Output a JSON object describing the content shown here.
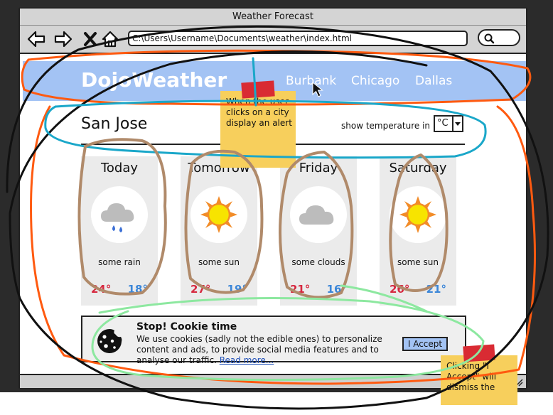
{
  "window": {
    "title": "Weather Forecast"
  },
  "browser": {
    "url": "C:\\Users\\Username\\Documents\\weather\\index.html"
  },
  "brand": {
    "name": "DojoWeather"
  },
  "nav": {
    "cities": [
      "Burbank",
      "Chicago",
      "Dallas"
    ]
  },
  "location": {
    "city": "San Jose"
  },
  "units": {
    "label": "show temperature in",
    "selected": "°C"
  },
  "forecast": [
    {
      "day": "Today",
      "condition": "some rain",
      "high": "24°",
      "low": "18°",
      "icon": "rain-cloud-icon"
    },
    {
      "day": "Tomorrow",
      "condition": "some sun",
      "high": "27°",
      "low": "19°",
      "icon": "sun-icon"
    },
    {
      "day": "Friday",
      "condition": "some clouds",
      "high": "21°",
      "low": "16°",
      "icon": "cloud-icon"
    },
    {
      "day": "Saturday",
      "condition": "some sun",
      "high": "26°",
      "low": "21°",
      "icon": "sun-icon"
    }
  ],
  "cookie": {
    "title": "Stop! Cookie time",
    "text": "We use cookies (sadly not the edible ones) to personalize content and ads, to provide social media features and to analyse our traffic.",
    "link": "Read more...",
    "accept": "I Accept"
  },
  "notes": [
    {
      "text": "When the user clicks on a city display an alert"
    },
    {
      "text": "Clicking \"I Accept\" will dismiss the"
    }
  ],
  "colors": {
    "header": "#a3c3f4",
    "high_temp": "#d6283f",
    "low_temp": "#3b86d8",
    "sticky_note": "#f7cf5c",
    "tape": "#d92b33",
    "scribble_orange": "#ff5a10",
    "scribble_blue": "#1aa7c9",
    "scribble_brown": "#b08a6a",
    "scribble_green": "#8de8a0"
  }
}
